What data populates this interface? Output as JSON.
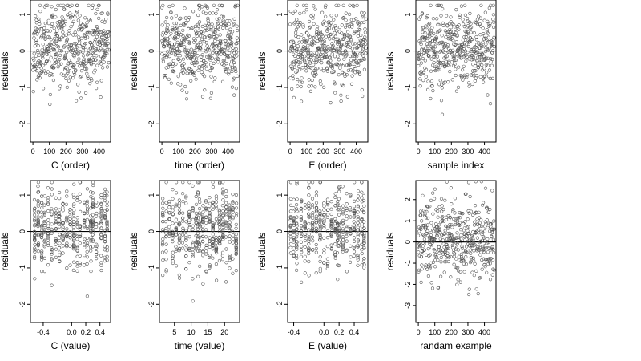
{
  "chart_data": [
    {
      "type": "scatter",
      "xlabel": "C (order)",
      "ylabel": "residuals",
      "xlim": [
        -15,
        470
      ],
      "ylim": [
        -2.5,
        1.4
      ],
      "xticks": [
        0,
        100,
        200,
        300,
        400
      ],
      "yticks": [
        -2,
        -1,
        0,
        1
      ],
      "reference_line": 0,
      "n": 460,
      "seed": 11,
      "xkind": "order",
      "ysd": 0.55,
      "levels": []
    },
    {
      "type": "scatter",
      "xlabel": "time (order)",
      "ylabel": "residuals",
      "xlim": [
        -15,
        470
      ],
      "ylim": [
        -2.5,
        1.4
      ],
      "xticks": [
        0,
        100,
        200,
        300,
        400
      ],
      "yticks": [
        -2,
        -1,
        0,
        1
      ],
      "reference_line": 0,
      "n": 460,
      "seed": 23,
      "xkind": "order",
      "ysd": 0.55,
      "levels": []
    },
    {
      "type": "scatter",
      "xlabel": "E (order)",
      "ylabel": "residuals",
      "xlim": [
        -15,
        470
      ],
      "ylim": [
        -2.5,
        1.4
      ],
      "xticks": [
        0,
        100,
        200,
        300,
        400
      ],
      "yticks": [
        -2,
        -1,
        0,
        1
      ],
      "reference_line": 0,
      "n": 460,
      "seed": 37,
      "xkind": "order",
      "ysd": 0.55,
      "levels": []
    },
    {
      "type": "scatter",
      "xlabel": "sample index",
      "ylabel": "residuals",
      "xlim": [
        -15,
        470
      ],
      "ylim": [
        -2.5,
        1.4
      ],
      "xticks": [
        0,
        100,
        200,
        300,
        400
      ],
      "yticks": [
        -2,
        -1,
        0,
        1
      ],
      "reference_line": 0,
      "n": 460,
      "seed": 41,
      "xkind": "order",
      "ysd": 0.55,
      "levels": []
    },
    {
      "type": "scatter",
      "xlabel": "C (value)",
      "ylabel": "residuals",
      "xlim": [
        -0.58,
        0.55
      ],
      "ylim": [
        -2.5,
        1.4
      ],
      "xticks": [
        -0.4,
        0.0,
        0.2,
        0.4
      ],
      "yticks": [
        -2,
        -1,
        0,
        1
      ],
      "reference_line": 0,
      "n": 460,
      "seed": 53,
      "xkind": "levels",
      "ysd": 0.55,
      "levels": [
        -0.52,
        -0.47,
        -0.42,
        -0.38,
        -0.33,
        -0.28,
        -0.22,
        -0.17,
        -0.12,
        -0.07,
        -0.02,
        0.03,
        0.08,
        0.12,
        0.18,
        0.22,
        0.27,
        0.3,
        0.35,
        0.42,
        0.47,
        0.5
      ]
    },
    {
      "type": "scatter",
      "xlabel": "time (value)",
      "ylabel": "residuals",
      "xlim": [
        0.5,
        24.5
      ],
      "ylim": [
        -2.5,
        1.4
      ],
      "xticks": [
        5,
        10,
        15,
        20
      ],
      "yticks": [
        -2,
        -1,
        0,
        1
      ],
      "reference_line": 0,
      "n": 460,
      "seed": 67,
      "xkind": "levels",
      "ysd": 0.55,
      "levels": [
        1.5,
        2.5,
        3.5,
        4.5,
        5.5,
        6.5,
        7.5,
        8.5,
        9.5,
        10.5,
        11.5,
        12,
        12.5,
        13.5,
        14.5,
        15.5,
        16.5,
        17.5,
        18.5,
        19.5,
        20.5,
        21.5,
        22.5,
        23.5
      ]
    },
    {
      "type": "scatter",
      "xlabel": "E (value)",
      "ylabel": "residuals",
      "xlim": [
        -0.48,
        0.58
      ],
      "ylim": [
        -2.5,
        1.4
      ],
      "xticks": [
        -0.4,
        0.0,
        0.2,
        0.4
      ],
      "yticks": [
        -2,
        -1,
        0,
        1
      ],
      "reference_line": 0,
      "n": 460,
      "seed": 79,
      "xkind": "levels",
      "ysd": 0.55,
      "levels": [
        -0.44,
        -0.4,
        -0.36,
        -0.3,
        -0.25,
        -0.2,
        -0.15,
        -0.1,
        -0.05,
        0.0,
        0.05,
        0.1,
        0.15,
        0.18,
        0.2,
        0.25,
        0.3,
        0.35,
        0.4,
        0.45,
        0.5,
        0.53
      ]
    },
    {
      "type": "scatter",
      "xlabel": "randam example",
      "ylabel": "residuals",
      "xlim": [
        -15,
        470
      ],
      "ylim": [
        -3.8,
        2.9
      ],
      "xticks": [
        0,
        100,
        200,
        300,
        400
      ],
      "yticks": [
        -3,
        -2,
        -1,
        0,
        1,
        2
      ],
      "reference_line": 0,
      "n": 460,
      "seed": 97,
      "xkind": "order",
      "ysd": 1.0,
      "levels": []
    }
  ]
}
